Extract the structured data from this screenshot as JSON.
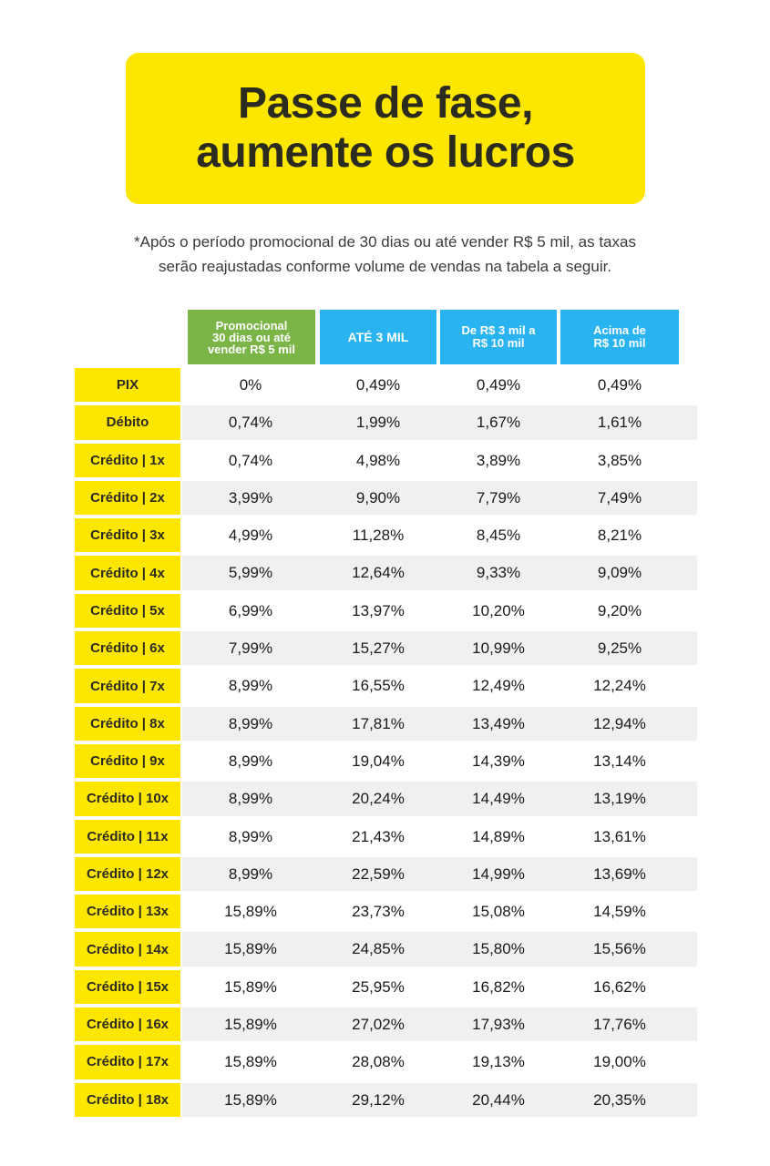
{
  "banner": {
    "line1": "Passe de fase,",
    "line2": "aumente os lucros"
  },
  "note": {
    "line1": "*Após o período promocional de 30 dias ou até vender R$ 5 mil, as taxas",
    "line2": "serão reajustadas conforme volume de vendas na tabela a seguir."
  },
  "headers": {
    "promo": [
      "Promocional",
      "30 dias ou até",
      "vender R$ 5 mil"
    ],
    "tier1": "ATÉ 3 MIL",
    "tier2": [
      "De R$ 3 mil a",
      "R$ 10 mil"
    ],
    "tier3": [
      "Acima de",
      "R$ 10 mil"
    ]
  },
  "rows": [
    [
      "PIX",
      "0%",
      "0,49%",
      "0,49%",
      "0,49%"
    ],
    [
      "Débito",
      "0,74%",
      "1,99%",
      "1,67%",
      "1,61%"
    ],
    [
      "Crédito | 1x",
      "0,74%",
      "4,98%",
      "3,89%",
      "3,85%"
    ],
    [
      "Crédito | 2x",
      "3,99%",
      "9,90%",
      "7,79%",
      "7,49%"
    ],
    [
      "Crédito | 3x",
      "4,99%",
      "11,28%",
      "8,45%",
      "8,21%"
    ],
    [
      "Crédito | 4x",
      "5,99%",
      "12,64%",
      "9,33%",
      "9,09%"
    ],
    [
      "Crédito | 5x",
      "6,99%",
      "13,97%",
      "10,20%",
      "9,20%"
    ],
    [
      "Crédito | 6x",
      "7,99%",
      "15,27%",
      "10,99%",
      "9,25%"
    ],
    [
      "Crédito | 7x",
      "8,99%",
      "16,55%",
      "12,49%",
      "12,24%"
    ],
    [
      "Crédito | 8x",
      "8,99%",
      "17,81%",
      "13,49%",
      "12,94%"
    ],
    [
      "Crédito | 9x",
      "8,99%",
      "19,04%",
      "14,39%",
      "13,14%"
    ],
    [
      "Crédito | 10x",
      "8,99%",
      "20,24%",
      "14,49%",
      "13,19%"
    ],
    [
      "Crédito | 11x",
      "8,99%",
      "21,43%",
      "14,89%",
      "13,61%"
    ],
    [
      "Crédito | 12x",
      "8,99%",
      "22,59%",
      "14,99%",
      "13,69%"
    ],
    [
      "Crédito | 13x",
      "15,89%",
      "23,73%",
      "15,08%",
      "14,59%"
    ],
    [
      "Crédito | 14x",
      "15,89%",
      "24,85%",
      "15,80%",
      "15,56%"
    ],
    [
      "Crédito | 15x",
      "15,89%",
      "25,95%",
      "16,82%",
      "16,62%"
    ],
    [
      "Crédito | 16x",
      "15,89%",
      "27,02%",
      "17,93%",
      "17,76%"
    ],
    [
      "Crédito | 17x",
      "15,89%",
      "28,08%",
      "19,13%",
      "19,00%"
    ],
    [
      "Crédito | 18x",
      "15,89%",
      "29,12%",
      "20,44%",
      "20,35%"
    ]
  ]
}
